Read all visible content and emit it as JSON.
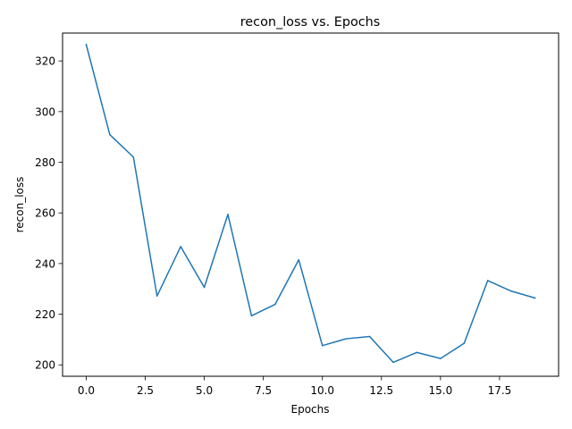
{
  "chart_data": {
    "type": "line",
    "title": "recon_loss vs. Epochs",
    "xlabel": "Epochs",
    "ylabel": "recon_loss",
    "xlim": [
      -1.0,
      20.0
    ],
    "ylim": [
      195.5,
      331.0
    ],
    "xticks": [
      0,
      2.5,
      5,
      7.5,
      10,
      12.5,
      15,
      17.5
    ],
    "xtick_labels": [
      "0.0",
      "2.5",
      "5.0",
      "7.5",
      "10.0",
      "12.5",
      "15.0",
      "17.5"
    ],
    "yticks": [
      200,
      220,
      240,
      260,
      280,
      300,
      320
    ],
    "ytick_labels": [
      "200",
      "220",
      "240",
      "260",
      "280",
      "300",
      "320"
    ],
    "grid": false,
    "series": [
      {
        "color": "#1f77b4",
        "x": [
          0,
          1,
          2,
          3,
          4,
          5,
          6,
          7,
          8,
          9,
          10,
          11,
          12,
          13,
          14,
          15,
          16,
          17,
          18,
          19
        ],
        "values": [
          326.5,
          290.9,
          282.0,
          227.2,
          246.7,
          230.6,
          259.4,
          219.4,
          223.9,
          241.5,
          207.6,
          210.3,
          211.2,
          201.0,
          204.9,
          202.5,
          208.5,
          233.3,
          229.1,
          226.4
        ]
      }
    ]
  }
}
